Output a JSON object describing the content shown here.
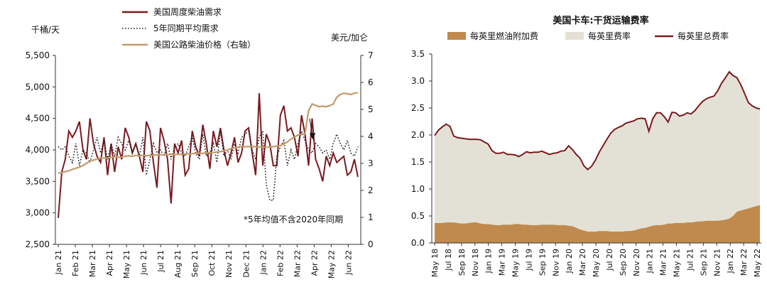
{
  "chart_data": [
    {
      "type": "line",
      "title": "",
      "ylabel_left": "千桶/天",
      "ylabel_right": "美元/加仑",
      "ylim_left": [
        2500,
        5500
      ],
      "yticks_left": [
        "2,500",
        "3,000",
        "3,500",
        "4,000",
        "4,500",
        "5,000",
        "5,500"
      ],
      "ylim_right": [
        0,
        7
      ],
      "yticks_right": [
        "0",
        "1",
        "2",
        "3",
        "4",
        "5",
        "6",
        "7"
      ],
      "x_tick_labels": [
        "Jan 21",
        "Feb 21",
        "Mar 21",
        "Apr 21",
        "May 21",
        "Jun 21",
        "Jul 21",
        "Aug 21",
        "Sep 21",
        "Oct 21",
        "Nov 21",
        "Dec 21",
        "Jan 22",
        "Feb 22",
        "Mar 22",
        "Apr 22",
        "May 22",
        "Jun 22"
      ],
      "annotation": "*5年均值不含2020年同期",
      "series": [
        {
          "name": "美国周度柴油需求",
          "axis": "left",
          "color": "#7a1a1f",
          "values": [
            2920,
            3650,
            3850,
            4300,
            4200,
            4300,
            4450,
            4000,
            3850,
            4500,
            4100,
            3900,
            3800,
            4200,
            3600,
            4100,
            3650,
            4050,
            3850,
            4350,
            4200,
            3950,
            4100,
            3900,
            3650,
            4450,
            4300,
            3800,
            3400,
            4350,
            4150,
            3850,
            3150,
            4100,
            3950,
            4150,
            3600,
            3700,
            4300,
            4050,
            3900,
            4400,
            4100,
            3700,
            4300,
            4050,
            4350,
            4000,
            3750,
            3950,
            4200,
            3800,
            3950,
            4300,
            4350,
            3950,
            3600,
            4900,
            3750,
            4250,
            4100,
            3750,
            3750,
            4550,
            4700,
            4300,
            4350,
            4200,
            3900,
            4550,
            4250,
            3750,
            4500,
            3850,
            3700,
            3500,
            3900,
            3750,
            3950,
            3800,
            3850,
            3900,
            3600,
            3650,
            3850,
            3570
          ]
        },
        {
          "name": "5年同期平均需求",
          "axis": "left",
          "color": "#222222",
          "values": [
            4050,
            4000,
            4050,
            3900,
            3800,
            4100,
            3750,
            4000,
            3950,
            3800,
            4000,
            4200,
            3950,
            4150,
            3850,
            4100,
            3900,
            4200,
            4100,
            4000,
            4150,
            3950,
            4100,
            3900,
            4200,
            3600,
            3850,
            4100,
            3950,
            4000,
            3900,
            4100,
            3850,
            4050,
            4100,
            3950,
            3900,
            4050,
            4200,
            3950,
            3850,
            4250,
            3900,
            3950,
            4100,
            3800,
            4300,
            3900,
            4000,
            3850,
            4100,
            3950,
            4200,
            4250,
            4300,
            4000,
            3850,
            4200,
            4300,
            3450,
            3200,
            3200,
            3900,
            4050,
            4150,
            3750,
            4000,
            3850,
            4100,
            4300,
            4150,
            4000,
            3950,
            4100,
            4050,
            3950,
            4000,
            3850,
            4100,
            4250,
            4100,
            4000,
            4150,
            3950,
            3900,
            4050
          ]
        },
        {
          "name": "美国公路柴油价格（右轴）",
          "axis": "right",
          "color": "#c49a6c",
          "values": [
            2.64,
            2.65,
            2.7,
            2.72,
            2.78,
            2.82,
            2.86,
            2.92,
            3.0,
            3.08,
            3.12,
            3.16,
            3.2,
            3.2,
            3.2,
            3.22,
            3.24,
            3.22,
            3.24,
            3.26,
            3.28,
            3.26,
            3.3,
            3.28,
            3.3,
            3.28,
            3.3,
            3.3,
            3.32,
            3.32,
            3.33,
            3.32,
            3.34,
            3.33,
            3.34,
            3.33,
            3.35,
            3.35,
            3.36,
            3.37,
            3.38,
            3.37,
            3.39,
            3.4,
            3.4,
            3.42,
            3.44,
            3.46,
            3.5,
            3.55,
            3.58,
            3.6,
            3.62,
            3.62,
            3.62,
            3.62,
            3.62,
            3.61,
            3.6,
            3.6,
            3.6,
            3.62,
            3.64,
            3.66,
            3.72,
            3.8,
            3.9,
            3.98,
            4.05,
            4.08,
            4.1,
            4.95,
            5.2,
            5.15,
            5.1,
            5.12,
            5.1,
            5.14,
            5.2,
            5.45,
            5.55,
            5.6,
            5.58,
            5.55,
            5.6,
            5.62
          ]
        }
      ],
      "legend_position": "top"
    },
    {
      "type": "area",
      "title": "美国卡车:干货运输费率",
      "ylim": [
        0,
        3.5
      ],
      "yticks": [
        "0.0",
        "0.5",
        "1.0",
        "1.5",
        "2.0",
        "2.5",
        "3.0",
        "3.5"
      ],
      "x_tick_labels": [
        "May 18",
        "Jul 18",
        "Sep 18",
        "Nov 18",
        "Jan 19",
        "Mar 19",
        "May 19",
        "Jul 19",
        "Sep 19",
        "Nov 19",
        "Jan 20",
        "Mar 20",
        "May 20",
        "Jul 20",
        "Sep 20",
        "Nov 20",
        "Jan 21",
        "Mar 21",
        "May 21",
        "Jul 21",
        "Sep 21",
        "Nov 21",
        "Jan 22",
        "Mar 22",
        "May 22"
      ],
      "series": [
        {
          "name": "每英里燃油附加费",
          "kind": "area",
          "color": "#c08a4e",
          "values": [
            0.37,
            0.37,
            0.37,
            0.38,
            0.38,
            0.38,
            0.37,
            0.36,
            0.36,
            0.37,
            0.38,
            0.38,
            0.36,
            0.35,
            0.35,
            0.34,
            0.33,
            0.33,
            0.34,
            0.34,
            0.34,
            0.35,
            0.35,
            0.34,
            0.34,
            0.33,
            0.33,
            0.33,
            0.34,
            0.34,
            0.34,
            0.34,
            0.33,
            0.33,
            0.33,
            0.32,
            0.31,
            0.28,
            0.25,
            0.23,
            0.21,
            0.21,
            0.21,
            0.22,
            0.22,
            0.22,
            0.21,
            0.21,
            0.21,
            0.21,
            0.22,
            0.22,
            0.23,
            0.25,
            0.27,
            0.28,
            0.3,
            0.32,
            0.33,
            0.33,
            0.34,
            0.36,
            0.36,
            0.37,
            0.37,
            0.37,
            0.38,
            0.38,
            0.39,
            0.4,
            0.4,
            0.41,
            0.41,
            0.41,
            0.41,
            0.42,
            0.43,
            0.45,
            0.5,
            0.58,
            0.6,
            0.62,
            0.64,
            0.66,
            0.68,
            0.7
          ]
        },
        {
          "name": "每英里费率",
          "kind": "area",
          "color": "#e3e1d5",
          "values": [
            1.62,
            1.72,
            1.78,
            1.82,
            1.78,
            1.6,
            1.58,
            1.58,
            1.57,
            1.55,
            1.54,
            1.54,
            1.55,
            1.52,
            1.48,
            1.37,
            1.33,
            1.33,
            1.34,
            1.3,
            1.3,
            1.28,
            1.25,
            1.3,
            1.35,
            1.34,
            1.35,
            1.35,
            1.36,
            1.33,
            1.3,
            1.32,
            1.34,
            1.37,
            1.38,
            1.48,
            1.42,
            1.36,
            1.32,
            1.2,
            1.15,
            1.21,
            1.32,
            1.46,
            1.58,
            1.7,
            1.82,
            1.89,
            1.93,
            1.96,
            2.0,
            2.02,
            2.03,
            2.05,
            2.04,
            2.02,
            1.77,
            1.98,
            2.08,
            2.08,
            2.0,
            1.88,
            2.06,
            2.04,
            1.98,
            2.0,
            2.03,
            2.01,
            2.06,
            2.14,
            2.22,
            2.26,
            2.29,
            2.31,
            2.41,
            2.54,
            2.63,
            2.72,
            2.6,
            2.48,
            2.33,
            2.15,
            1.96,
            1.88,
            1.82,
            1.78
          ]
        },
        {
          "name": "每英里总费率",
          "kind": "line",
          "color": "#7a1a1f",
          "values": [
            1.99,
            2.09,
            2.15,
            2.2,
            2.16,
            1.98,
            1.95,
            1.94,
            1.93,
            1.92,
            1.92,
            1.92,
            1.91,
            1.87,
            1.83,
            1.71,
            1.66,
            1.66,
            1.68,
            1.64,
            1.64,
            1.63,
            1.6,
            1.64,
            1.69,
            1.67,
            1.68,
            1.68,
            1.7,
            1.67,
            1.64,
            1.66,
            1.67,
            1.7,
            1.71,
            1.8,
            1.73,
            1.64,
            1.57,
            1.43,
            1.36,
            1.42,
            1.53,
            1.68,
            1.8,
            1.92,
            2.03,
            2.1,
            2.14,
            2.17,
            2.22,
            2.24,
            2.26,
            2.3,
            2.31,
            2.3,
            2.07,
            2.3,
            2.41,
            2.41,
            2.34,
            2.24,
            2.42,
            2.41,
            2.35,
            2.37,
            2.41,
            2.39,
            2.45,
            2.54,
            2.62,
            2.67,
            2.7,
            2.72,
            2.82,
            2.96,
            3.06,
            3.17,
            3.1,
            3.06,
            2.93,
            2.77,
            2.6,
            2.54,
            2.5,
            2.48
          ]
        }
      ],
      "legend_position": "top"
    }
  ]
}
